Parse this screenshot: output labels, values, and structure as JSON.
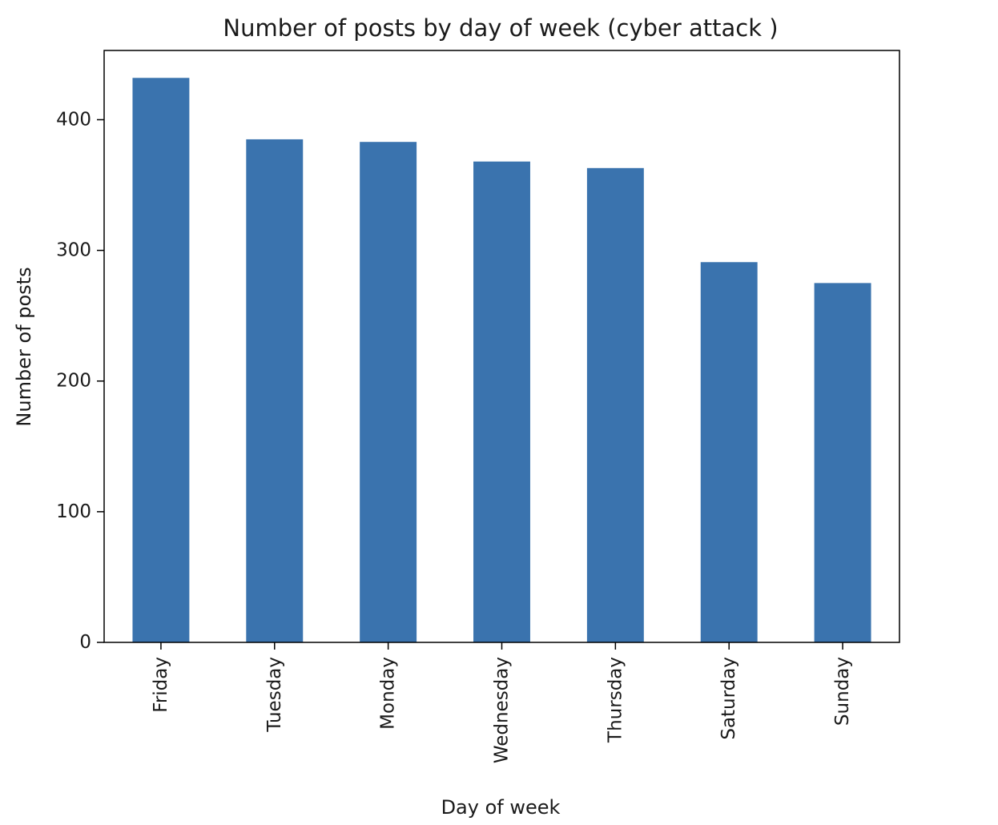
{
  "chart_data": {
    "type": "bar",
    "title": "Number of posts by day of week (cyber attack )",
    "xlabel": "Day of week",
    "ylabel": "Number of posts",
    "categories": [
      "Friday",
      "Tuesday",
      "Monday",
      "Wednesday",
      "Thursday",
      "Saturday",
      "Sunday"
    ],
    "values": [
      432,
      385,
      383,
      368,
      363,
      291,
      275
    ],
    "ylim": [
      0,
      453
    ],
    "yticks": [
      0,
      100,
      200,
      300,
      400
    ],
    "bar_color": "#3a73ae",
    "grid": false,
    "legend": "none"
  }
}
